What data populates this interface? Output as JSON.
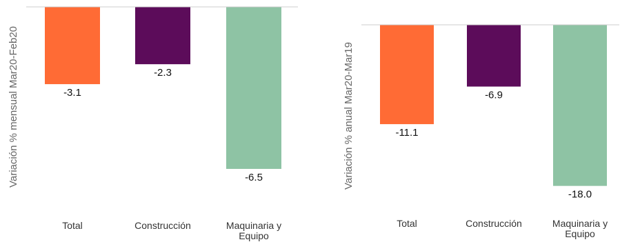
{
  "chart_data": [
    {
      "type": "bar",
      "ylabel": "Variación % mensual Mar20-Feb20",
      "categories": [
        [
          "Total"
        ],
        [
          "Construcción"
        ],
        [
          "Maquinaria y",
          "Equipo"
        ]
      ],
      "values": [
        -3.1,
        -2.3,
        -6.5
      ],
      "value_labels": [
        "-3.1",
        "-2.3",
        "-6.5"
      ],
      "colors": [
        "#ff6b35",
        "#5c0c5a",
        "#8ec3a4"
      ],
      "ylim": [
        -7,
        0
      ],
      "grid": false
    },
    {
      "type": "bar",
      "ylabel": "Variación % anual Mar20-Mar19",
      "categories": [
        [
          "Total"
        ],
        [
          "Construcción"
        ],
        [
          "Maquinaria y",
          "Equipo"
        ]
      ],
      "values": [
        -11.1,
        -6.9,
        -18.0
      ],
      "value_labels": [
        "-11.1",
        "-6.9",
        "-18.0"
      ],
      "colors": [
        "#ff6b35",
        "#5c0c5a",
        "#8ec3a4"
      ],
      "ylim": [
        -20,
        0
      ],
      "grid": false
    }
  ]
}
